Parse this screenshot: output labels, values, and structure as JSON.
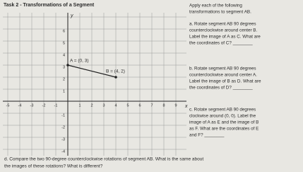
{
  "title": "Task 2 - Transformations of a Segment",
  "grid": {
    "x_label": "x",
    "y_label": "y",
    "x_ticks": [
      -5,
      -4,
      -3,
      -2,
      -1,
      1,
      2,
      3,
      4,
      5,
      6,
      7,
      8,
      9
    ],
    "y_ticks": [
      6,
      5,
      4,
      3,
      2,
      1,
      -1,
      -2,
      -3,
      -4
    ],
    "points": [
      {
        "label": "A = (0, 3)"
      },
      {
        "label": "B = (4, 2)"
      }
    ]
  },
  "instructions": [
    [
      "Apply each of the following",
      "transformations to segment AB."
    ],
    [
      "a. Rotate segment AB 90 degrees",
      "counterclockwise around center B.",
      "Label the image of A as C. What are",
      "the coordinates of C? ________"
    ],
    [
      "b. Rotate segment AB 90 degrees",
      "counterclockwise around center A.",
      "Label the image of B as D. What are",
      "the coordinates of D? ________"
    ],
    [
      "c. Rotate segment AB 90 degrees",
      "clockwise around (0, 0). Label the",
      "image of A as E and the image of B",
      "as F. What are the coordinates of E",
      "and F? ________"
    ]
  ],
  "question_d": [
    "d. Compare the two 90-degree counterclockwise rotations of segment AB. What is the same about",
    "the images of these rotations? What is different?"
  ]
}
